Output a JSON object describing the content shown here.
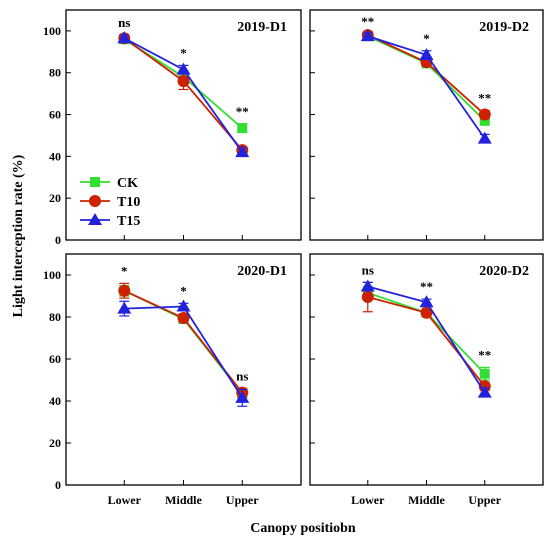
{
  "chart_data": {
    "type": "line",
    "ylabel": "Light interception rate (%)",
    "xlabel": "Canopy positiobn",
    "categories": [
      "Lower",
      "Middle",
      "Upper"
    ],
    "ylim": [
      0,
      110
    ],
    "yticks": [
      "0",
      "20",
      "40",
      "60",
      "80",
      "100"
    ],
    "legend": {
      "placement": "left, lower panel 2019-D1",
      "entries": [
        "CK",
        "T10",
        "T15"
      ]
    },
    "series_style": {
      "CK": {
        "color": "#33dd33",
        "marker": "square"
      },
      "T10": {
        "color": "#cc2200",
        "marker": "circle"
      },
      "T15": {
        "color": "#2222dd",
        "marker": "triangle"
      }
    },
    "panels": [
      {
        "title": "2019-D1",
        "significance": [
          "ns",
          "*",
          "**"
        ],
        "show_y_tick_labels": true,
        "show_x_tick_labels": false,
        "series": [
          {
            "name": "CK",
            "values": [
              96,
              78,
              53.5
            ],
            "errors": [
              1.5,
              3,
              2
            ]
          },
          {
            "name": "T10",
            "values": [
              96.5,
              76,
              43
            ],
            "errors": [
              1.5,
              4,
              1.5
            ]
          },
          {
            "name": "T15",
            "values": [
              96.5,
              81.5,
              42
            ],
            "errors": [
              1.5,
              2,
              2
            ]
          }
        ]
      },
      {
        "title": "2019-D2",
        "significance": [
          "**",
          "*",
          "**"
        ],
        "show_y_tick_labels": false,
        "show_x_tick_labels": false,
        "series": [
          {
            "name": "CK",
            "values": [
              97.5,
              84.5,
              57
            ],
            "errors": [
              1.5,
              2,
              2
            ]
          },
          {
            "name": "T10",
            "values": [
              98,
              85,
              60
            ],
            "errors": [
              1.5,
              1.5,
              2
            ]
          },
          {
            "name": "T15",
            "values": [
              97.5,
              88.5,
              48.5
            ],
            "errors": [
              1.5,
              2,
              2
            ]
          }
        ]
      },
      {
        "title": "2020-D1",
        "significance": [
          "*",
          "*",
          "ns"
        ],
        "show_y_tick_labels": true,
        "show_x_tick_labels": true,
        "series": [
          {
            "name": "CK",
            "values": [
              92.5,
              79,
              43.5
            ],
            "errors": [
              2.5,
              2,
              2
            ]
          },
          {
            "name": "T10",
            "values": [
              92.5,
              79.5,
              44
            ],
            "errors": [
              3.5,
              2,
              2
            ]
          },
          {
            "name": "T15",
            "values": [
              84,
              85,
              41.5
            ],
            "errors": [
              3.5,
              1.5,
              4
            ]
          }
        ]
      },
      {
        "title": "2020-D2",
        "significance": [
          "ns",
          "**",
          "**"
        ],
        "show_y_tick_labels": false,
        "show_x_tick_labels": true,
        "series": [
          {
            "name": "CK",
            "values": [
              91.5,
              82,
              53
            ],
            "errors": [
              3,
              1.5,
              3
            ]
          },
          {
            "name": "T10",
            "values": [
              89.5,
              82,
              47
            ],
            "errors": [
              7,
              1.5,
              2
            ]
          },
          {
            "name": "T15",
            "values": [
              94.5,
              87,
              44
            ],
            "errors": [
              2,
              1.5,
              2
            ]
          }
        ]
      }
    ]
  }
}
